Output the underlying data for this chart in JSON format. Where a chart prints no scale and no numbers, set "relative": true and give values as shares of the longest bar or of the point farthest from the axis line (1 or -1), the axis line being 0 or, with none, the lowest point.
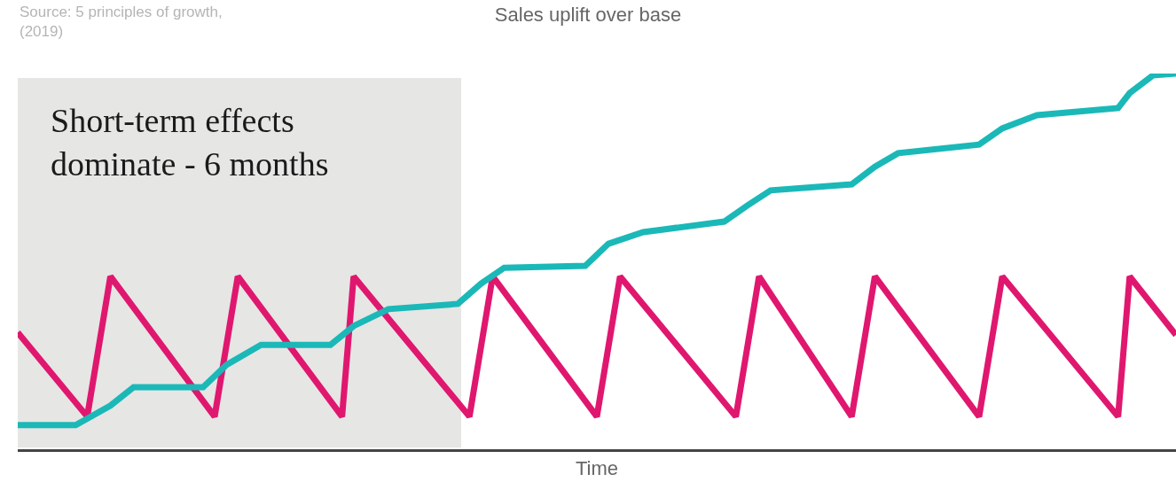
{
  "chart_data": {
    "type": "line",
    "title": "Sales uplift over base",
    "xlabel": "Time",
    "relative": true,
    "marker": "none",
    "line_style": "solid",
    "annotations": [
      "Source: 5 principles of growth,\n(2019)",
      "Short-term effects\ndominate - 6 months"
    ],
    "categories": [
      null,
      null,
      null,
      null,
      null,
      null,
      null,
      null,
      null,
      null,
      null,
      null,
      null,
      null,
      null,
      null,
      null,
      null,
      null,
      null,
      null,
      null,
      null,
      null,
      null,
      null,
      null,
      null,
      null,
      null,
      null,
      null,
      null,
      null,
      null,
      null,
      null,
      null,
      null,
      null,
      null,
      null,
      null,
      null,
      null,
      null,
      null,
      null,
      null,
      null,
      null,
      null,
      null,
      null,
      null,
      null,
      null,
      null,
      null,
      null,
      null,
      null,
      null,
      null,
      null,
      null,
      null,
      null,
      null,
      null,
      null,
      null,
      null,
      null,
      null,
      null,
      null,
      null,
      null,
      null,
      null,
      null,
      null,
      null,
      null,
      null,
      null,
      null,
      null,
      null,
      null,
      null,
      null,
      null,
      null,
      null,
      null,
      null,
      null,
      null,
      null
    ],
    "series": [
      {
        "color": "#e0176f",
        "values": [
          0.311,
          null,
          null,
          null,
          null,
          null,
          0.087,
          null,
          0.46,
          null,
          null,
          null,
          null,
          null,
          null,
          null,
          null,
          0.087,
          null,
          0.46,
          null,
          null,
          null,
          null,
          null,
          null,
          null,
          null,
          0.087,
          0.46,
          null,
          null,
          null,
          null,
          null,
          null,
          null,
          null,
          null,
          0.087,
          null,
          0.46,
          null,
          null,
          null,
          null,
          null,
          null,
          null,
          null,
          0.087,
          null,
          0.46,
          null,
          null,
          null,
          null,
          null,
          null,
          null,
          null,
          null,
          0.087,
          null,
          0.46,
          null,
          null,
          null,
          null,
          null,
          null,
          null,
          0.087,
          null,
          0.46,
          null,
          null,
          null,
          null,
          null,
          null,
          null,
          null,
          0.087,
          null,
          0.46,
          null,
          null,
          null,
          null,
          null,
          null,
          null,
          null,
          null,
          0.087,
          0.46,
          null,
          null,
          null,
          0.304
        ]
      },
      {
        "color": "#1bb8b8",
        "values": [
          0.064,
          null,
          null,
          null,
          null,
          0.064,
          null,
          null,
          0.116,
          null,
          0.165,
          null,
          null,
          null,
          null,
          null,
          0.165,
          null,
          0.224,
          null,
          null,
          0.278,
          null,
          null,
          null,
          null,
          null,
          0.278,
          null,
          0.328,
          null,
          null,
          0.373,
          null,
          null,
          null,
          null,
          null,
          0.387,
          null,
          0.441,
          null,
          0.483,
          null,
          null,
          null,
          null,
          null,
          null,
          0.488,
          null,
          0.547,
          null,
          null,
          0.578,
          null,
          null,
          null,
          null,
          null,
          null,
          0.606,
          null,
          0.649,
          null,
          0.689,
          null,
          null,
          null,
          null,
          null,
          null,
          0.705,
          null,
          0.752,
          null,
          0.788,
          null,
          null,
          null,
          null,
          null,
          null,
          0.811,
          null,
          0.854,
          null,
          null,
          0.889,
          null,
          null,
          null,
          null,
          null,
          null,
          0.908,
          0.948,
          null,
          0.995,
          null,
          1
        ]
      }
    ]
  }
}
